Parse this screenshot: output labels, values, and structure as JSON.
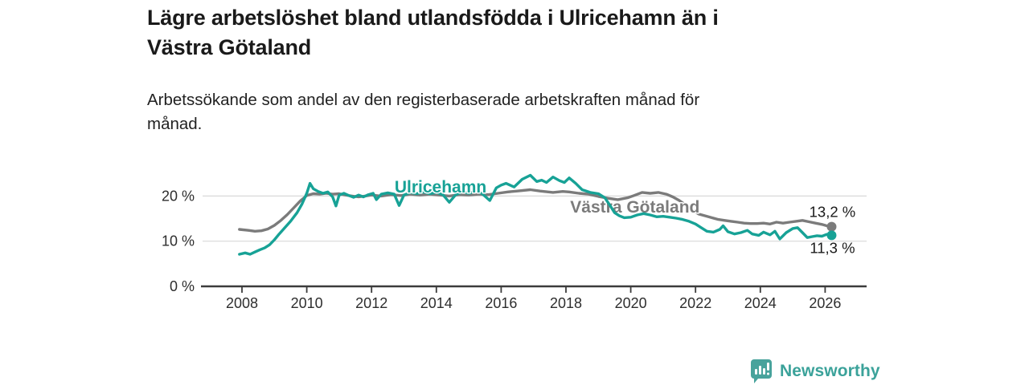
{
  "header": {
    "title_lines": [
      "Lägre arbetslöshet bland utlandsfödda i Ulricehamn än i",
      "Västra Götaland"
    ],
    "subtitle_lines": [
      "Arbetssökande som andel av den registerbaserade arbetskraften månad för",
      "månad."
    ]
  },
  "chart_data": {
    "type": "line",
    "title": "Lägre arbetslöshet bland utlandsfödda i Ulricehamn än i Västra Götaland",
    "subtitle": "Arbetssökande som andel av den registerbaserade arbetskraften månad för månad.",
    "unit": "%",
    "grid": "horizontal",
    "ylim": [
      0,
      27
    ],
    "x_range": [
      2007.92,
      2026.2
    ],
    "x_ticks": [
      2008,
      2010,
      2012,
      2014,
      2016,
      2018,
      2020,
      2022,
      2024,
      2026
    ],
    "y_ticks": [
      {
        "value": 0,
        "label": "0 %"
      },
      {
        "value": 10,
        "label": "10 %"
      },
      {
        "value": 20,
        "label": "20 %"
      }
    ],
    "colors": {
      "ulricehamn": "#17a296",
      "vastra_gotaland": "#7b7b7b",
      "grid": "#d8d8d8",
      "axis": "#3c3c3c",
      "text": "#2e2e2e"
    },
    "series": [
      {
        "name": "Västra Götaland",
        "color": "#7b7b7b",
        "end_label": "13,2 %",
        "end_label_position": "above",
        "label_anchor": {
          "x": 2020.13,
          "y": 17.6
        },
        "points": [
          [
            2007.92,
            12.6
          ],
          [
            2008.2,
            12.4
          ],
          [
            2008.4,
            12.2
          ],
          [
            2008.6,
            12.3
          ],
          [
            2008.8,
            12.7
          ],
          [
            2009.0,
            13.5
          ],
          [
            2009.2,
            14.6
          ],
          [
            2009.4,
            15.9
          ],
          [
            2009.6,
            17.4
          ],
          [
            2009.8,
            18.9
          ],
          [
            2010.0,
            20.1
          ],
          [
            2010.2,
            20.5
          ],
          [
            2010.4,
            20.4
          ],
          [
            2010.6,
            20.6
          ],
          [
            2010.8,
            20.4
          ],
          [
            2011.0,
            20.5
          ],
          [
            2011.2,
            20.2
          ],
          [
            2011.4,
            20.0
          ],
          [
            2011.6,
            19.8
          ],
          [
            2011.8,
            20.0
          ],
          [
            2012.0,
            20.2
          ],
          [
            2012.3,
            20.0
          ],
          [
            2012.6,
            20.3
          ],
          [
            2012.9,
            20.1
          ],
          [
            2013.2,
            20.4
          ],
          [
            2013.5,
            20.2
          ],
          [
            2013.8,
            20.4
          ],
          [
            2014.1,
            20.2
          ],
          [
            2014.4,
            20.0
          ],
          [
            2014.7,
            20.3
          ],
          [
            2015.0,
            20.2
          ],
          [
            2015.3,
            20.4
          ],
          [
            2015.6,
            20.3
          ],
          [
            2015.9,
            20.6
          ],
          [
            2016.2,
            20.9
          ],
          [
            2016.5,
            21.1
          ],
          [
            2016.9,
            21.4
          ],
          [
            2017.2,
            21.1
          ],
          [
            2017.6,
            20.8
          ],
          [
            2017.9,
            21.0
          ],
          [
            2018.1,
            20.9
          ],
          [
            2018.4,
            20.6
          ],
          [
            2018.7,
            20.4
          ],
          [
            2019.0,
            19.9
          ],
          [
            2019.3,
            19.5
          ],
          [
            2019.6,
            19.2
          ],
          [
            2019.9,
            19.6
          ],
          [
            2020.1,
            20.1
          ],
          [
            2020.35,
            20.8
          ],
          [
            2020.6,
            20.6
          ],
          [
            2020.85,
            20.8
          ],
          [
            2021.1,
            20.4
          ],
          [
            2021.3,
            19.8
          ],
          [
            2021.5,
            19.0
          ],
          [
            2021.7,
            18.0
          ],
          [
            2021.9,
            16.9
          ],
          [
            2022.1,
            16.0
          ],
          [
            2022.3,
            15.6
          ],
          [
            2022.5,
            15.2
          ],
          [
            2022.7,
            14.8
          ],
          [
            2022.9,
            14.6
          ],
          [
            2023.1,
            14.4
          ],
          [
            2023.3,
            14.2
          ],
          [
            2023.5,
            14.0
          ],
          [
            2023.7,
            13.9
          ],
          [
            2023.9,
            13.9
          ],
          [
            2024.1,
            14.0
          ],
          [
            2024.3,
            13.8
          ],
          [
            2024.5,
            14.2
          ],
          [
            2024.7,
            14.0
          ],
          [
            2024.9,
            14.2
          ],
          [
            2025.1,
            14.4
          ],
          [
            2025.3,
            14.6
          ],
          [
            2025.5,
            14.3
          ],
          [
            2025.7,
            14.0
          ],
          [
            2025.9,
            13.7
          ],
          [
            2026.05,
            13.4
          ],
          [
            2026.2,
            13.2
          ]
        ]
      },
      {
        "name": "Ulricehamn",
        "color": "#17a296",
        "end_label": "11,3 %",
        "end_label_position": "below",
        "label_anchor": {
          "x": 2014.13,
          "y": 22.0
        },
        "points": [
          [
            2007.92,
            7.1
          ],
          [
            2008.1,
            7.4
          ],
          [
            2008.25,
            7.1
          ],
          [
            2008.4,
            7.6
          ],
          [
            2008.55,
            8.1
          ],
          [
            2008.7,
            8.5
          ],
          [
            2008.85,
            9.2
          ],
          [
            2009.0,
            10.3
          ],
          [
            2009.15,
            11.6
          ],
          [
            2009.3,
            12.8
          ],
          [
            2009.5,
            14.4
          ],
          [
            2009.7,
            16.3
          ],
          [
            2009.85,
            18.2
          ],
          [
            2010.0,
            20.6
          ],
          [
            2010.1,
            22.8
          ],
          [
            2010.2,
            21.6
          ],
          [
            2010.35,
            21.0
          ],
          [
            2010.5,
            20.6
          ],
          [
            2010.65,
            20.9
          ],
          [
            2010.8,
            19.8
          ],
          [
            2010.9,
            17.8
          ],
          [
            2011.0,
            20.2
          ],
          [
            2011.15,
            20.6
          ],
          [
            2011.3,
            20.1
          ],
          [
            2011.45,
            19.7
          ],
          [
            2011.6,
            20.2
          ],
          [
            2011.75,
            19.8
          ],
          [
            2011.9,
            20.3
          ],
          [
            2012.05,
            20.6
          ],
          [
            2012.15,
            19.2
          ],
          [
            2012.3,
            20.4
          ],
          [
            2012.5,
            20.7
          ],
          [
            2012.7,
            20.4
          ],
          [
            2012.85,
            17.9
          ],
          [
            2013.0,
            20.2
          ],
          [
            2013.2,
            20.8
          ],
          [
            2013.4,
            20.5
          ],
          [
            2013.6,
            20.9
          ],
          [
            2013.8,
            20.5
          ],
          [
            2014.0,
            20.8
          ],
          [
            2014.2,
            20.3
          ],
          [
            2014.4,
            18.6
          ],
          [
            2014.6,
            20.3
          ],
          [
            2014.8,
            20.9
          ],
          [
            2015.0,
            20.6
          ],
          [
            2015.2,
            21.0
          ],
          [
            2015.4,
            20.6
          ],
          [
            2015.65,
            19.0
          ],
          [
            2015.85,
            21.8
          ],
          [
            2016.0,
            22.4
          ],
          [
            2016.15,
            22.8
          ],
          [
            2016.4,
            22.0
          ],
          [
            2016.65,
            23.7
          ],
          [
            2016.9,
            24.6
          ],
          [
            2017.1,
            23.2
          ],
          [
            2017.25,
            23.5
          ],
          [
            2017.4,
            23.0
          ],
          [
            2017.6,
            24.2
          ],
          [
            2017.8,
            23.4
          ],
          [
            2017.95,
            23.0
          ],
          [
            2018.1,
            24.0
          ],
          [
            2018.3,
            22.8
          ],
          [
            2018.5,
            21.4
          ],
          [
            2018.75,
            20.8
          ],
          [
            2019.0,
            20.5
          ],
          [
            2019.2,
            19.6
          ],
          [
            2019.35,
            18.0
          ],
          [
            2019.5,
            16.3
          ],
          [
            2019.65,
            15.6
          ],
          [
            2019.8,
            15.2
          ],
          [
            2020.0,
            15.3
          ],
          [
            2020.2,
            15.8
          ],
          [
            2020.4,
            16.1
          ],
          [
            2020.6,
            15.8
          ],
          [
            2020.8,
            15.4
          ],
          [
            2021.0,
            15.5
          ],
          [
            2021.2,
            15.3
          ],
          [
            2021.4,
            15.1
          ],
          [
            2021.6,
            14.8
          ],
          [
            2021.8,
            14.4
          ],
          [
            2022.0,
            13.8
          ],
          [
            2022.15,
            13.1
          ],
          [
            2022.35,
            12.2
          ],
          [
            2022.55,
            12.0
          ],
          [
            2022.75,
            12.6
          ],
          [
            2022.85,
            13.4
          ],
          [
            2023.0,
            12.1
          ],
          [
            2023.2,
            11.6
          ],
          [
            2023.4,
            11.9
          ],
          [
            2023.6,
            12.4
          ],
          [
            2023.75,
            11.6
          ],
          [
            2023.95,
            11.3
          ],
          [
            2024.1,
            12.0
          ],
          [
            2024.3,
            11.4
          ],
          [
            2024.45,
            12.2
          ],
          [
            2024.6,
            10.5
          ],
          [
            2024.8,
            11.9
          ],
          [
            2025.0,
            12.8
          ],
          [
            2025.15,
            13.0
          ],
          [
            2025.3,
            11.9
          ],
          [
            2025.45,
            10.8
          ],
          [
            2025.6,
            11.0
          ],
          [
            2025.75,
            11.2
          ],
          [
            2025.9,
            11.1
          ],
          [
            2026.05,
            11.5
          ],
          [
            2026.2,
            11.3
          ]
        ]
      }
    ]
  },
  "footer": {
    "brand": "Newsworthy",
    "logo_icon": "newsworthy-chart-bubble-icon",
    "brand_color": "#3ba29a",
    "logo_color": "#48a39c"
  }
}
